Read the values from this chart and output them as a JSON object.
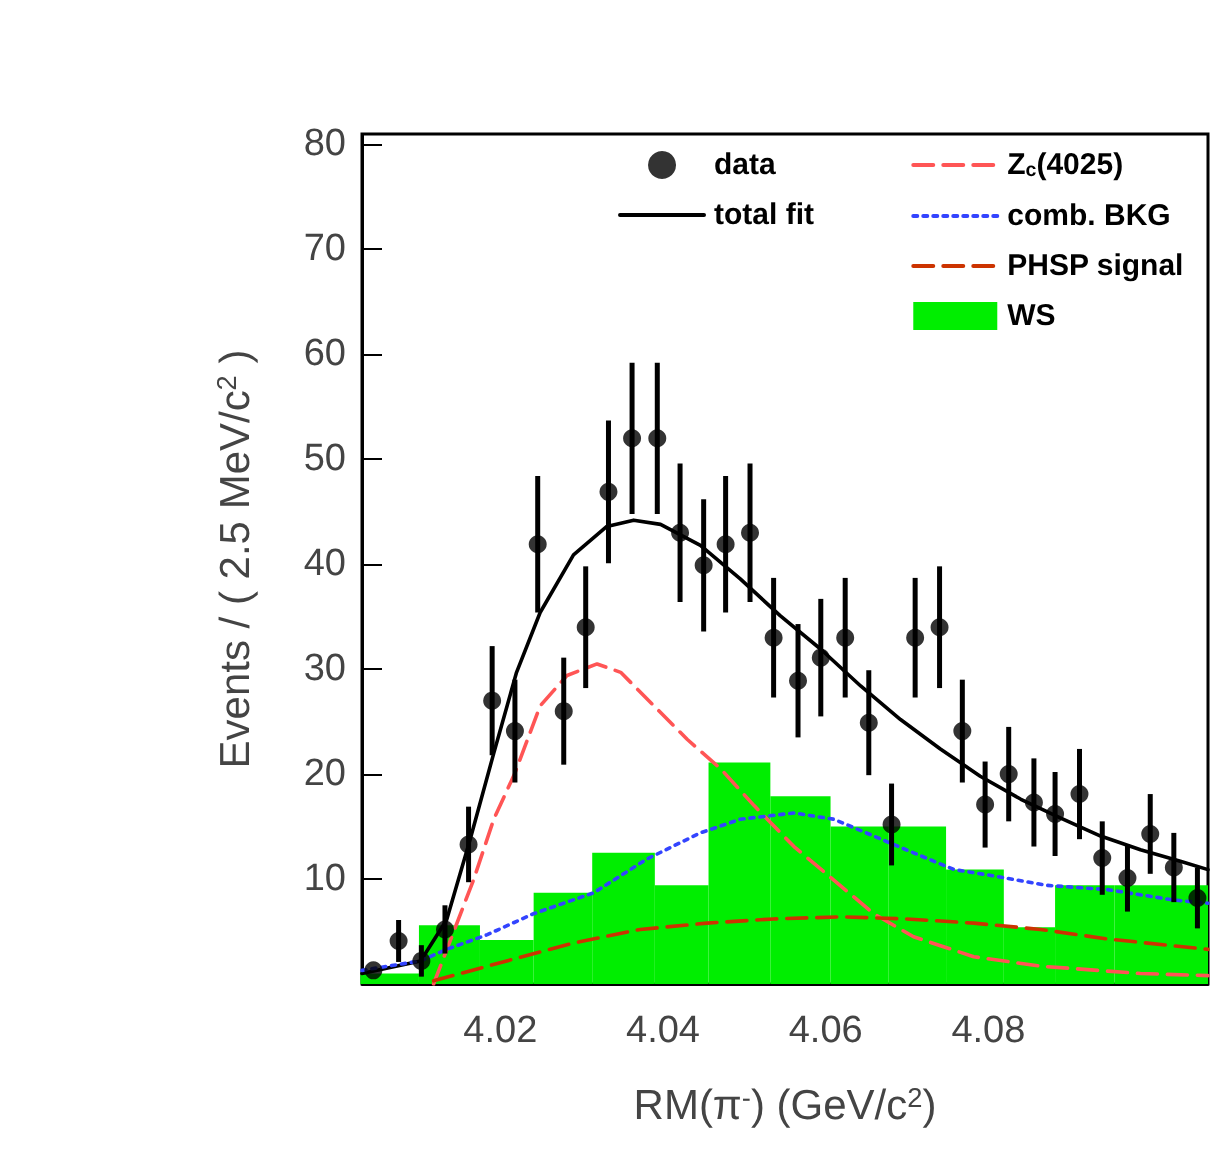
{
  "chart_data": {
    "type": "line",
    "xlabel": "RM(π$^{-}$) (GeV/c$^{2}$)",
    "ylabel": "Events / ( 2.5 MeV/c$^{2}$ )",
    "xlim": [
      4.003,
      4.107
    ],
    "xticks": [
      4.02,
      4.04,
      4.06,
      4.08
    ],
    "ylim": [
      0,
      81
    ],
    "yticks": [
      10,
      20,
      30,
      40,
      50,
      60,
      70,
      80
    ],
    "grid": false,
    "legend": "top right",
    "series": [
      {
        "name": "data",
        "type": "scatter",
        "marker": "circle",
        "color": "#000000",
        "x": [
          4.0044,
          4.0075,
          4.0103,
          4.0132,
          4.0161,
          4.019,
          4.0218,
          4.0246,
          4.0278,
          4.0305,
          4.0333,
          4.0362,
          4.0393,
          4.0421,
          4.045,
          4.0477,
          4.0507,
          4.0536,
          4.0566,
          4.0594,
          4.0624,
          4.0653,
          4.0681,
          4.071,
          4.074,
          4.0768,
          4.0796,
          4.0825,
          4.0856,
          4.0882,
          4.0912,
          4.094,
          4.0971,
          4.0999,
          4.1028,
          4.1057
        ],
        "values": [
          1.3,
          4.1,
          2.2,
          5.2,
          13.3,
          27.0,
          24.1,
          41.9,
          26.0,
          34.0,
          46.9,
          52.0,
          52.0,
          43.0,
          39.9,
          41.9,
          43.0,
          33.0,
          28.9,
          31.1,
          33.0,
          24.9,
          15.2,
          33.0,
          34.0,
          24.1,
          17.1,
          20.0,
          17.3,
          16.2,
          18.1,
          12.0,
          10.1,
          14.3,
          11.1,
          8.2
        ],
        "errors": [
          null,
          2,
          1.5,
          2.3,
          3.6,
          5.2,
          4.9,
          6.5,
          5.1,
          5.8,
          6.8,
          7.2,
          7.2,
          6.6,
          6.3,
          6.5,
          6.6,
          5.7,
          5.4,
          5.6,
          5.7,
          5,
          3.9,
          5.7,
          5.8,
          4.9,
          4.1,
          4.5,
          4.2,
          4,
          4.3,
          3.5,
          3.2,
          3.8,
          3.3,
          2.9
        ]
      },
      {
        "name": "total fit",
        "line_style": "solid",
        "color": "#000000",
        "x": [
          4.003,
          4.0102,
          4.0134,
          4.0163,
          4.0192,
          4.022,
          4.0249,
          4.029,
          4.0331,
          4.0364,
          4.0397,
          4.0446,
          4.0495,
          4.0544,
          4.0594,
          4.0643,
          4.0692,
          4.0741,
          4.079,
          4.084,
          4.0889,
          4.0938,
          4.0987,
          4.1036,
          4.107
        ],
        "values": [
          1.0,
          2.2,
          6.1,
          13.8,
          22.0,
          29.7,
          35.4,
          40.9,
          43.6,
          44.2,
          43.8,
          41.8,
          38.6,
          35.1,
          31.9,
          28.4,
          25.2,
          22.4,
          19.8,
          17.6,
          15.8,
          14.1,
          12.8,
          11.7,
          10.9
        ]
      },
      {
        "name": "Z$_{c}$(4025)",
        "line_style": "dashed",
        "color": "#ff5555",
        "x": [
          4.0118,
          4.0167,
          4.0192,
          4.0218,
          4.0249,
          4.0282,
          4.0319,
          4.0348,
          4.0389,
          4.043,
          4.0471,
          4.0512,
          4.0561,
          4.061,
          4.0659,
          4.0708,
          4.0782,
          4.0864,
          4.0987,
          4.107
        ],
        "values": [
          0,
          9.9,
          15.7,
          20.1,
          26.5,
          29.4,
          30.5,
          29.7,
          26.5,
          23.3,
          20.5,
          17.0,
          13.1,
          9.9,
          6.7,
          4.5,
          2.6,
          1.7,
          1.0,
          0.8
        ]
      },
      {
        "name": "comb. BKG",
        "line_style": "dotted",
        "color": "#3344ff",
        "x": [
          4.003,
          4.0102,
          4.0134,
          4.0184,
          4.0241,
          4.0315,
          4.038,
          4.0446,
          4.0495,
          4.0561,
          4.061,
          4.0659,
          4.0708,
          4.0758,
          4.0807,
          4.0872,
          4.0946,
          4.1028,
          4.107
        ],
        "values": [
          1.3,
          2.2,
          3.3,
          4.7,
          6.7,
          8.7,
          11.9,
          14.4,
          15.7,
          16.3,
          15.7,
          14.1,
          12.5,
          10.9,
          10.3,
          9.4,
          9.0,
          8.0,
          7.7
        ]
      },
      {
        "name": "PHSP signal",
        "line_style": "dashed",
        "color": "#cc3300",
        "x": [
          4.0118,
          4.0208,
          4.029,
          4.0372,
          4.0454,
          4.0536,
          4.0618,
          4.07,
          4.0782,
          4.0864,
          4.0946,
          4.107
        ],
        "values": [
          0.3,
          2.2,
          3.9,
          5.2,
          5.8,
          6.2,
          6.4,
          6.2,
          5.8,
          5.2,
          4.3,
          3.3
        ]
      },
      {
        "name": "WS",
        "type": "histogram",
        "color": "#00ee00",
        "bins": [
          4.0028,
          4.01,
          4.0175,
          4.0241,
          4.0313,
          4.039,
          4.0456,
          4.0532,
          4.0606,
          4.0677,
          4.0748,
          4.0819,
          4.0882,
          4.0955,
          4.107
        ],
        "values": [
          1,
          5.6,
          4.2,
          8.7,
          12.5,
          9.4,
          21.1,
          17.9,
          15.0,
          15.0,
          10.9,
          5.4,
          9.4,
          9.4
        ]
      }
    ]
  }
}
